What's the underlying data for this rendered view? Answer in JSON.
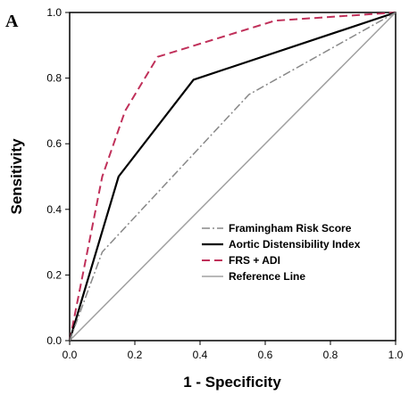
{
  "panel_label": "A",
  "chart_data": {
    "type": "line",
    "xlabel": "1 - Specificity",
    "ylabel": "Sensitivity",
    "xlim": [
      0.0,
      1.0
    ],
    "ylim": [
      0.0,
      1.0
    ],
    "xticks": [
      "0.0",
      "0.2",
      "0.4",
      "0.6",
      "0.8",
      "1.0"
    ],
    "yticks": [
      "0.0",
      "0.2",
      "0.4",
      "0.6",
      "0.8",
      "1.0"
    ],
    "grid": false,
    "legend_position": "bottom-right",
    "series": [
      {
        "name": "Framingham Risk Score",
        "color": "#888888",
        "style": "dash-dot",
        "x": [
          0.0,
          0.1,
          0.55,
          1.0
        ],
        "y": [
          0.0,
          0.27,
          0.75,
          1.0
        ]
      },
      {
        "name": "Aortic Distensibility Index",
        "color": "#000000",
        "style": "solid",
        "x": [
          0.0,
          0.15,
          0.38,
          1.0
        ],
        "y": [
          0.0,
          0.5,
          0.795,
          1.0
        ]
      },
      {
        "name": "FRS + ADI",
        "color": "#c0305a",
        "style": "dashed",
        "x": [
          0.0,
          0.1,
          0.17,
          0.27,
          0.63,
          1.0
        ],
        "y": [
          0.0,
          0.5,
          0.7,
          0.865,
          0.975,
          1.0
        ]
      },
      {
        "name": "Reference Line",
        "color": "#a0a0a0",
        "style": "solid",
        "x": [
          0.0,
          1.0
        ],
        "y": [
          0.0,
          1.0
        ]
      }
    ]
  }
}
